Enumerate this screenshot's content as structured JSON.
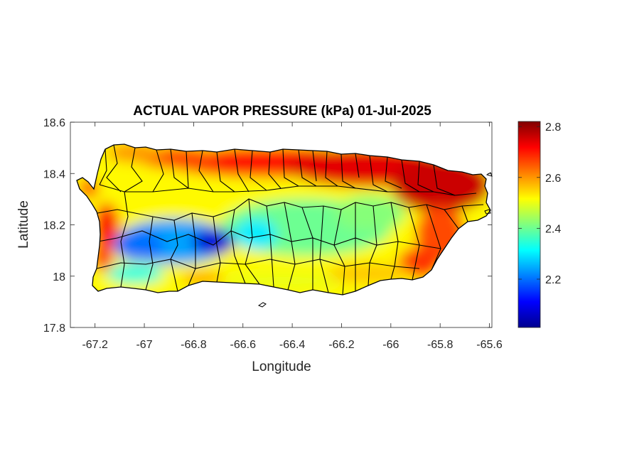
{
  "chart_data": {
    "type": "heatmap",
    "title": "ACTUAL VAPOR PRESSURE (kPa) 01-Jul-2025",
    "xlabel": "Longitude",
    "ylabel": "Latitude",
    "xlim": [
      -67.3,
      -65.59
    ],
    "ylim": [
      17.8,
      18.6
    ],
    "x_ticks": [
      -67.2,
      -67,
      -66.8,
      -66.6,
      -66.4,
      -66.2,
      -66,
      -65.8,
      -65.6
    ],
    "x_tick_labels": [
      "-67.2",
      "-67",
      "-66.8",
      "-66.6",
      "-66.4",
      "-66.2",
      "-66",
      "-65.8",
      "-65.6"
    ],
    "y_ticks": [
      17.8,
      18,
      18.2,
      18.4,
      18.6
    ],
    "y_tick_labels": [
      "17.8",
      "18",
      "18.2",
      "18.4",
      "18.6"
    ],
    "colorbar": {
      "colormap": "jet",
      "min": 2.01,
      "max": 2.82,
      "ticks": [
        2.2,
        2.4,
        2.6,
        2.8
      ],
      "tick_labels": [
        "2.2",
        "2.4",
        "2.6",
        "2.8"
      ]
    },
    "field_description": "Vapor pressure over Puerto Rico: high (~2.7-2.8) along north and east coasts, minimum (~2.0) in central-west mountains near -66.7, 18.13; moderate (~2.5) over south coast; high pocket on west coast.",
    "colors": {
      "axis": "#262626",
      "border": "#000000"
    }
  }
}
